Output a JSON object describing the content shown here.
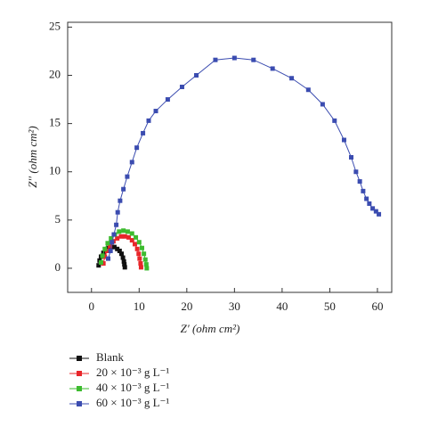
{
  "chart_data": {
    "type": "line",
    "x_label": "Z′ (ohm cm²)",
    "y_label": "Z′′ (ohm cm²)",
    "xlim": [
      -5,
      63
    ],
    "ylim": [
      -2.5,
      25.5
    ],
    "xticks": [
      0,
      10,
      20,
      30,
      40,
      50,
      60
    ],
    "yticks": [
      0,
      5,
      10,
      15,
      20,
      25
    ],
    "grid": false,
    "legend": "bottom-left",
    "series": [
      {
        "name": "Blank",
        "color": "#111111",
        "x": [
          1.5,
          1.7,
          2.0,
          2.5,
          3.0,
          3.6,
          4.2,
          4.8,
          5.4,
          5.9,
          6.3,
          6.6,
          6.8,
          6.9,
          7.0
        ],
        "values": [
          0.3,
          0.8,
          1.2,
          1.6,
          1.9,
          2.1,
          2.2,
          2.2,
          2.0,
          1.8,
          1.5,
          1.1,
          0.7,
          0.4,
          0.1
        ]
      },
      {
        "name": "20 × 10⁻³ g L⁻¹",
        "color": "#e8262a",
        "x": [
          2.5,
          2.8,
          3.3,
          3.9,
          4.6,
          5.4,
          6.2,
          7.0,
          7.8,
          8.5,
          9.1,
          9.6,
          9.9,
          10.1,
          10.3,
          10.4
        ],
        "values": [
          0.5,
          1.2,
          1.8,
          2.3,
          2.8,
          3.1,
          3.3,
          3.3,
          3.2,
          2.9,
          2.5,
          2.0,
          1.5,
          1.0,
          0.5,
          0.1
        ]
      },
      {
        "name": "40 × 10⁻³ g L⁻¹",
        "color": "#3dbb2f",
        "x": [
          2.0,
          2.3,
          2.8,
          3.4,
          4.1,
          4.9,
          5.8,
          6.7,
          7.6,
          8.5,
          9.3,
          10.0,
          10.6,
          11.0,
          11.3,
          11.5,
          11.6
        ],
        "values": [
          0.6,
          1.3,
          2.0,
          2.6,
          3.1,
          3.5,
          3.8,
          3.9,
          3.8,
          3.6,
          3.2,
          2.7,
          2.1,
          1.5,
          0.9,
          0.4,
          0.0
        ]
      },
      {
        "name": "60 × 10⁻³ g L⁻¹",
        "color": "#3b4cb0",
        "x": [
          3.5,
          4.0,
          4.3,
          4.7,
          5.2,
          5.5,
          6.0,
          6.7,
          7.5,
          8.5,
          9.5,
          10.8,
          12.0,
          13.5,
          16.0,
          19.0,
          22.0,
          26.0,
          30.0,
          34.0,
          38.0,
          42.0,
          45.5,
          48.5,
          51.0,
          53.0,
          54.5,
          55.5,
          56.3,
          57.0,
          57.7,
          58.3,
          59.0,
          59.7,
          60.3
        ],
        "values": [
          1.0,
          1.8,
          2.7,
          3.5,
          4.5,
          5.8,
          7.0,
          8.2,
          9.5,
          11.0,
          12.5,
          14.0,
          15.3,
          16.3,
          17.5,
          18.8,
          20.0,
          21.6,
          21.8,
          21.6,
          20.7,
          19.7,
          18.5,
          17.0,
          15.3,
          13.3,
          11.5,
          10.0,
          9.0,
          8.0,
          7.2,
          6.7,
          6.2,
          5.9,
          5.6
        ]
      }
    ]
  }
}
